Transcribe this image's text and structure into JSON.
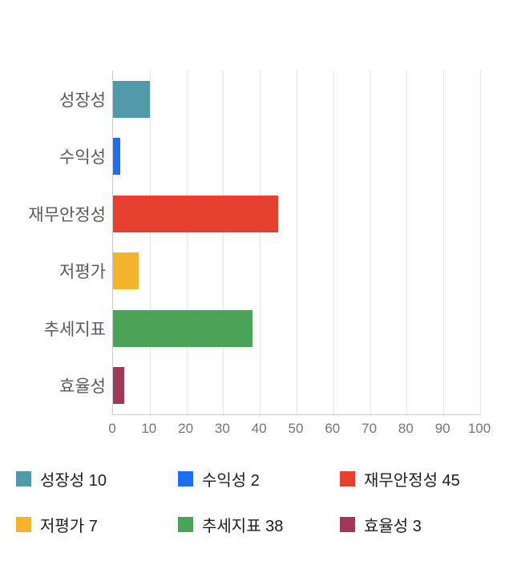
{
  "chart_data": {
    "type": "bar",
    "orientation": "horizontal",
    "title": "",
    "categories": [
      "성장성",
      "수익성",
      "재무안정성",
      "저평가",
      "추세지표",
      "효율성"
    ],
    "values": [
      10,
      2,
      45,
      7,
      38,
      3
    ],
    "colors": [
      "#4e9aaa",
      "#1e6ef5",
      "#e5402f",
      "#f3b32b",
      "#4aa457",
      "#9d3a55"
    ],
    "xlim": [
      0,
      100
    ],
    "x_ticks": [
      0,
      10,
      20,
      30,
      40,
      50,
      60,
      70,
      80,
      90,
      100
    ],
    "grid": true,
    "legend_position": "bottom",
    "legend": [
      {
        "label": "성장성 10",
        "color": "#4e9aaa"
      },
      {
        "label": "수익성 2",
        "color": "#1e6ef5"
      },
      {
        "label": "재무안정성 45",
        "color": "#e5402f"
      },
      {
        "label": "저평가 7",
        "color": "#f3b32b"
      },
      {
        "label": "추세지표 38",
        "color": "#4aa457"
      },
      {
        "label": "효율성 3",
        "color": "#9d3a55"
      }
    ]
  }
}
